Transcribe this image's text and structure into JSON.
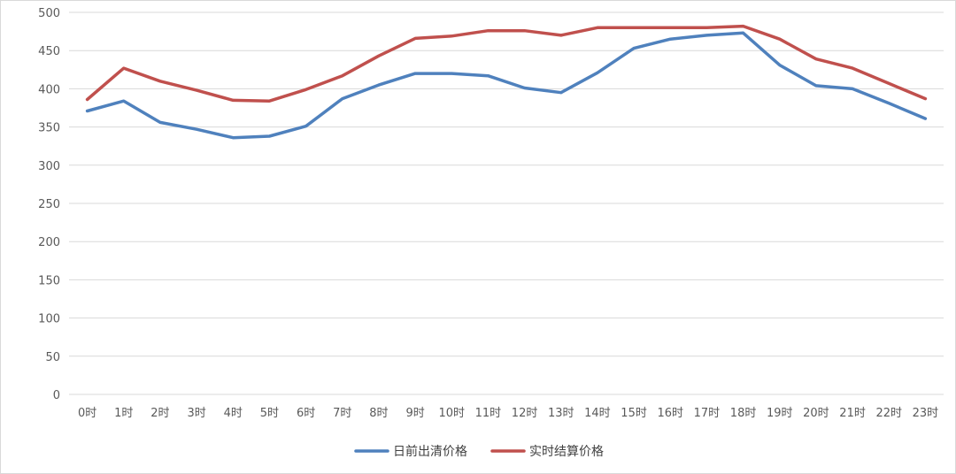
{
  "chart_data": {
    "type": "line",
    "title": "",
    "xlabel": "",
    "ylabel": "",
    "categories": [
      "0时",
      "1时",
      "2时",
      "3时",
      "4时",
      "5时",
      "6时",
      "7时",
      "8时",
      "9时",
      "10时",
      "11时",
      "12时",
      "13时",
      "14时",
      "15时",
      "16时",
      "17时",
      "18时",
      "19时",
      "20时",
      "21时",
      "22时",
      "23时"
    ],
    "series": [
      {
        "name": "日前出清价格",
        "color": "#4f81bd",
        "values": [
          371,
          384,
          356,
          347,
          336,
          338,
          351,
          387,
          405,
          420,
          420,
          417,
          401,
          395,
          421,
          453,
          465,
          470,
          473,
          431,
          404,
          400,
          381,
          361
        ]
      },
      {
        "name": "实时结算价格",
        "color": "#c0504d",
        "values": [
          386,
          427,
          410,
          398,
          385,
          384,
          399,
          417,
          443,
          466,
          469,
          476,
          476,
          470,
          480,
          480,
          480,
          480,
          482,
          465,
          439,
          427,
          407,
          387
        ]
      }
    ],
    "ylim": [
      0,
      500
    ],
    "yticks": [
      0,
      50,
      100,
      150,
      200,
      250,
      300,
      350,
      400,
      450,
      500
    ],
    "grid": true,
    "legend_position": "bottom"
  }
}
